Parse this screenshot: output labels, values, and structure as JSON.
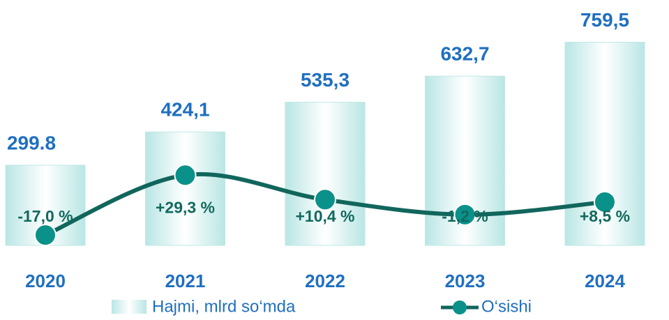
{
  "chart_data": {
    "type": "bar",
    "categories": [
      "2020",
      "2021",
      "2022",
      "2023",
      "2024"
    ],
    "series": [
      {
        "name": "Hajmi, mlrd so‘mda",
        "type": "bar",
        "color": "#bfe8e6",
        "values": [
          299.8,
          424.1,
          535.3,
          632.7,
          759.5
        ],
        "value_labels": [
          "299.8",
          "424,1",
          "535,3",
          "632,7",
          "759,5"
        ]
      },
      {
        "name": "O‘sishi",
        "type": "line",
        "axis": "y2",
        "color": "#11665c",
        "values": [
          -17.0,
          29.3,
          10.4,
          -1.2,
          8.5
        ],
        "value_labels": [
          "-17,0 %",
          "+29,3 %",
          "+10,4 %",
          "-1,2 %",
          "+8,5 %"
        ]
      }
    ],
    "ylim": [
      0,
      800
    ],
    "y2lim": [
      -25,
      100
    ],
    "legend": "bottom"
  }
}
